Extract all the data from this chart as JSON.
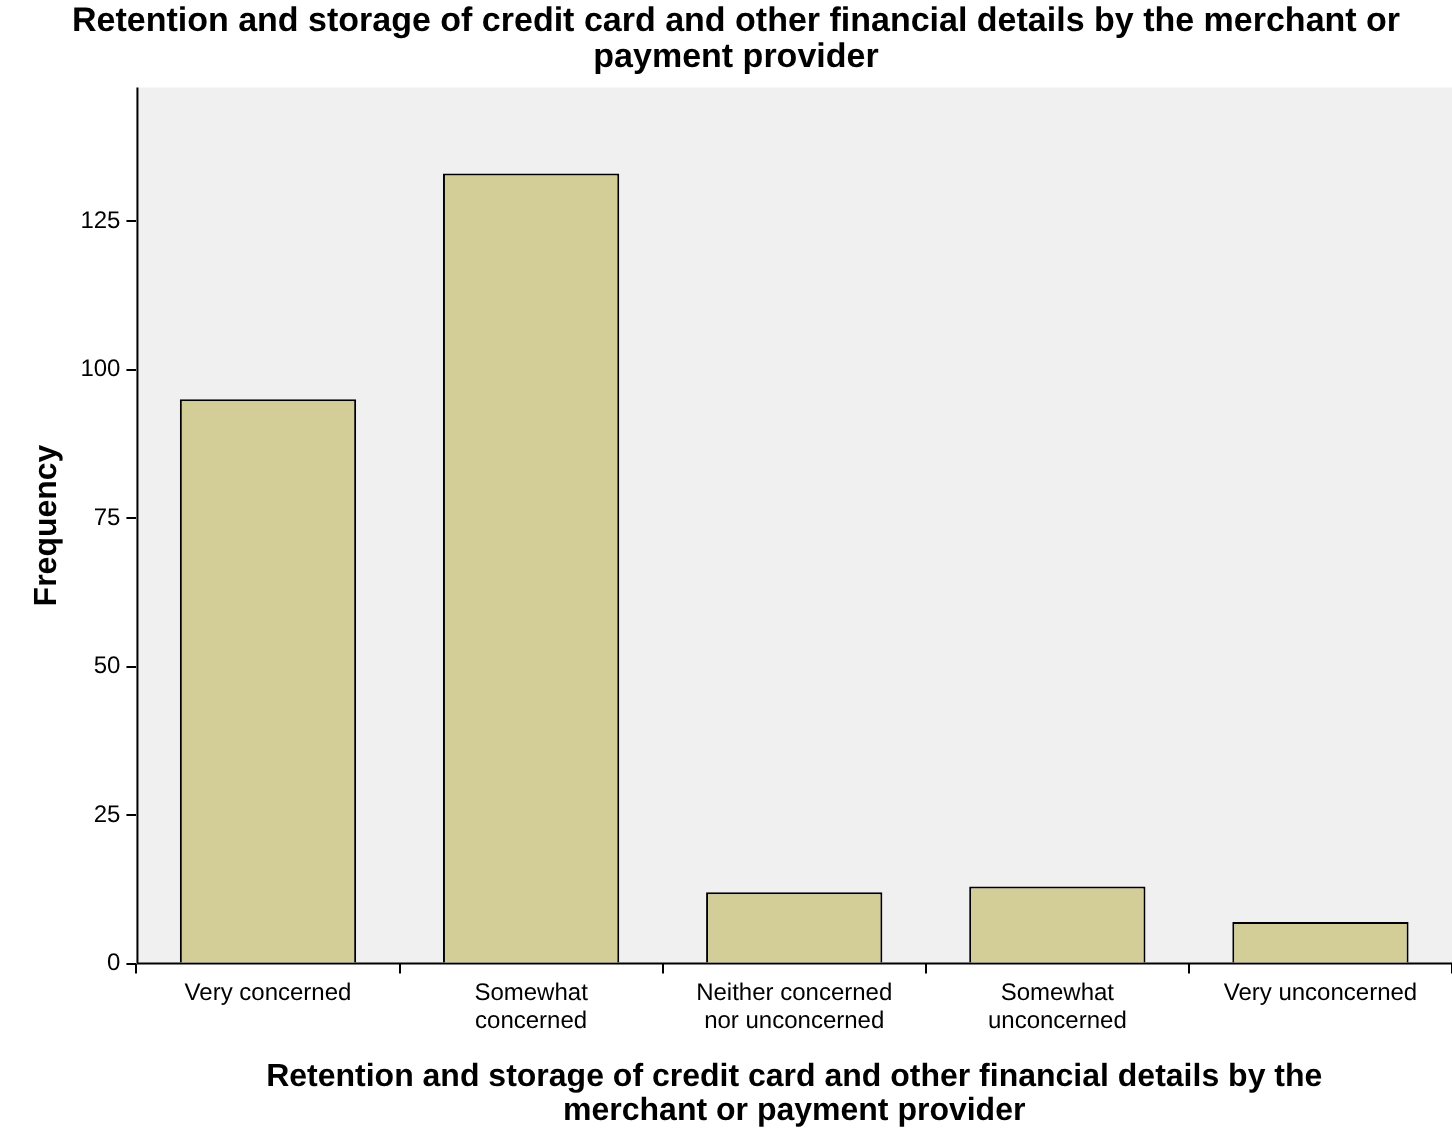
{
  "chart_data": {
    "type": "bar",
    "title": "Retention and storage of credit card and other financial details by the merchant or payment provider",
    "xlabel": "Retention and storage of credit card and other financial details by the merchant or payment provider",
    "ylabel": "Frequency",
    "categories": [
      "Very concerned",
      "Somewhat concerned",
      "Neither concerned nor unconcerned",
      "Somewhat unconcerned",
      "Very unconcerned"
    ],
    "values": [
      95,
      133,
      12,
      13,
      7
    ],
    "color": "#d3ce97",
    "ylim": [
      0,
      147.5
    ],
    "yticks": [
      0,
      25,
      50,
      75,
      100,
      125
    ],
    "grid": false,
    "legend": false
  }
}
